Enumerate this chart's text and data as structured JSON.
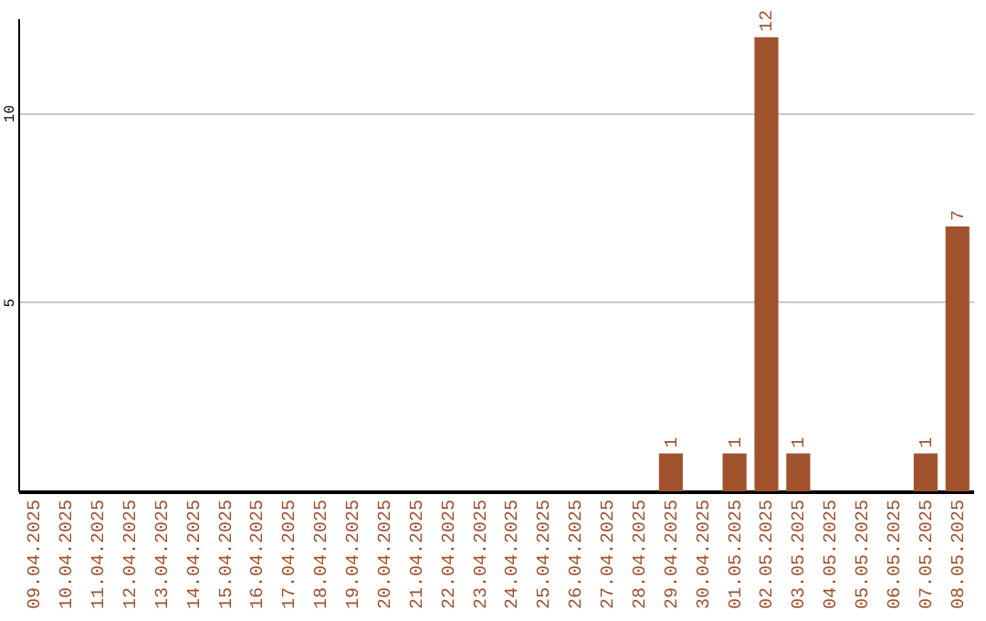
{
  "chart_data": {
    "type": "bar",
    "categories": [
      "09.04.2025",
      "10.04.2025",
      "11.04.2025",
      "12.04.2025",
      "13.04.2025",
      "14.04.2025",
      "15.04.2025",
      "16.04.2025",
      "17.04.2025",
      "18.04.2025",
      "19.04.2025",
      "20.04.2025",
      "21.04.2025",
      "22.04.2025",
      "23.04.2025",
      "24.04.2025",
      "25.04.2025",
      "26.04.2025",
      "27.04.2025",
      "28.04.2025",
      "29.04.2025",
      "30.04.2025",
      "01.05.2025",
      "02.05.2025",
      "03.05.2025",
      "04.05.2025",
      "05.05.2025",
      "06.05.2025",
      "07.05.2025",
      "08.05.2025"
    ],
    "values": [
      0,
      0,
      0,
      0,
      0,
      0,
      0,
      0,
      0,
      0,
      0,
      0,
      0,
      0,
      0,
      0,
      0,
      0,
      0,
      0,
      1,
      0,
      1,
      12,
      1,
      0,
      0,
      0,
      1,
      7
    ],
    "value_labels": [
      null,
      null,
      null,
      null,
      null,
      null,
      null,
      null,
      null,
      null,
      null,
      null,
      null,
      null,
      null,
      null,
      null,
      null,
      null,
      null,
      "1",
      null,
      "1",
      "12",
      "1",
      null,
      null,
      null,
      "1",
      "7"
    ],
    "color": "#a0522d",
    "ylim": [
      0,
      12.5
    ],
    "yticks": [
      5,
      10
    ],
    "grid": "y"
  }
}
